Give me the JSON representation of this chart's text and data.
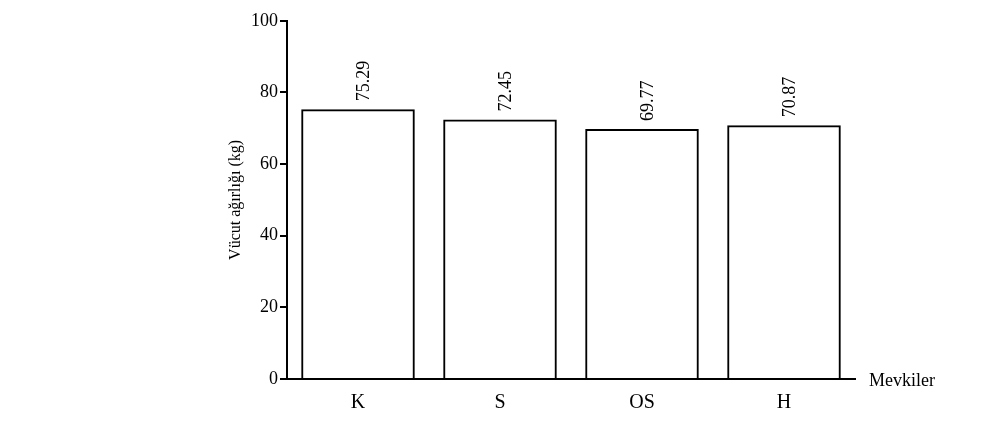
{
  "chart_data": {
    "type": "bar",
    "xlabel": "Mevkiler",
    "ylabel": "Vücut ağırlığı (kg)",
    "categories": [
      "K",
      "S",
      "OS",
      "H"
    ],
    "values": [
      75.29,
      72.45,
      69.77,
      70.87
    ],
    "color": "#000000",
    "ylim": [
      0,
      100
    ],
    "yticks": [
      0,
      20,
      40,
      60,
      80,
      100
    ],
    "data_labels": true
  }
}
